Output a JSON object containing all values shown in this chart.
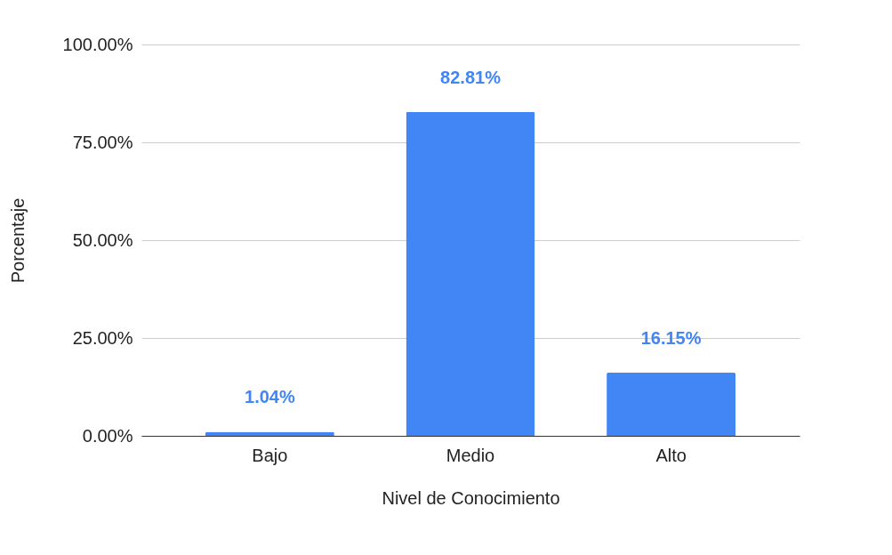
{
  "chart_data": {
    "type": "bar",
    "xlabel": "Nivel de Conocimiento",
    "ylabel": "Porcentaje",
    "categories": [
      "Bajo",
      "Medio",
      "Alto"
    ],
    "values": [
      1.04,
      82.81,
      16.15
    ],
    "value_labels": [
      "1.04%",
      "82.81%",
      "16.15%"
    ],
    "color": "#4285f4",
    "ylim": [
      0,
      100
    ],
    "yticks": [
      {
        "value": 0,
        "label": "0.00%"
      },
      {
        "value": 25,
        "label": "25.00%"
      },
      {
        "value": 50,
        "label": "50.00%"
      },
      {
        "value": 75,
        "label": "75.00%"
      },
      {
        "value": 100,
        "label": "100.00%"
      }
    ],
    "grid": "y"
  }
}
